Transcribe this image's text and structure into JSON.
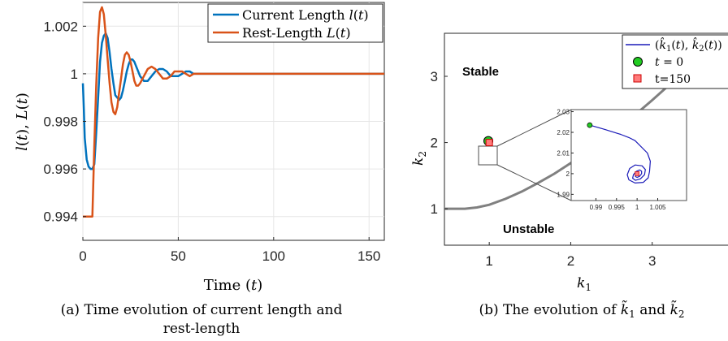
{
  "colors": {
    "current": "#0072BD",
    "rest": "#D95319",
    "path": "#1a1ab8",
    "boundary": "#808080",
    "start": "#22cc22",
    "end": "#ff7b7b"
  },
  "chart_data": [
    {
      "type": "line",
      "xlabel": "Time (t)",
      "ylabel": "l(t), L(t)",
      "xlim": [
        0,
        158
      ],
      "ylim": [
        0.993,
        1.003
      ],
      "xticks": [
        0,
        50,
        100,
        150
      ],
      "yticks": [
        0.994,
        0.996,
        0.998,
        1,
        1.002
      ],
      "ytick_labels": [
        "0.994",
        "0.996",
        "0.998",
        "1",
        "1.002"
      ],
      "grid": true,
      "legend_position": "top-right",
      "caption": "(a) Time evolution of current length and rest-length",
      "series": [
        {
          "name": "Current Length l(t)",
          "color": "current",
          "x": [
            0,
            0.5,
            1,
            2,
            3,
            4,
            5,
            6,
            7,
            8,
            9,
            10,
            11,
            12,
            13,
            14,
            15,
            16,
            17,
            18,
            19,
            20,
            21,
            22,
            23,
            24,
            25,
            26,
            27,
            28,
            29,
            30,
            32,
            34,
            36,
            38,
            40,
            42,
            44,
            46,
            48,
            50,
            52,
            54,
            56,
            58,
            60,
            62,
            64,
            66,
            70,
            80,
            90,
            100,
            120,
            158
          ],
          "y": [
            0.9996,
            0.9985,
            0.9973,
            0.9964,
            0.9961,
            0.996,
            0.996,
            0.9962,
            0.9975,
            0.999,
            1.0005,
            1.0013,
            1.0016,
            1.0017,
            1.0015,
            1.0009,
            1.0002,
            0.9996,
            0.9991,
            0.999,
            0.9989,
            0.999,
            0.9993,
            0.9997,
            1.0001,
            1.0004,
            1.0006,
            1.0006,
            1.0005,
            1.0003,
            1.0001,
            0.9999,
            0.9997,
            0.9997,
            0.9999,
            1.0001,
            1.0002,
            1.0002,
            1.0001,
            0.9999,
            0.9999,
            0.9999,
            1.0,
            1.0001,
            1.0001,
            1.0,
            1.0,
            1.0,
            1.0,
            1.0,
            1.0,
            1.0,
            1.0,
            1.0,
            1.0,
            1.0
          ]
        },
        {
          "name": "Rest-Length L(t)",
          "color": "rest",
          "x": [
            0,
            5,
            5.5,
            6,
            7,
            8,
            9,
            10,
            11,
            12,
            13,
            14,
            15,
            16,
            17,
            18,
            19,
            20,
            21,
            22,
            23,
            24,
            25,
            26,
            27,
            28,
            29,
            30,
            32,
            34,
            36,
            38,
            40,
            42,
            44,
            46,
            48,
            50,
            52,
            54,
            56,
            58,
            60,
            62,
            64,
            66,
            70,
            80,
            90,
            100,
            120,
            158
          ],
          "y": [
            0.994,
            0.994,
            0.9955,
            0.997,
            0.9995,
            1.0015,
            1.0026,
            1.0028,
            1.0025,
            1.0016,
            1.0006,
            0.9996,
            0.9988,
            0.9984,
            0.9983,
            0.9986,
            0.9992,
            0.9998,
            1.0004,
            1.0008,
            1.0009,
            1.0008,
            1.0005,
            1.0001,
            0.9997,
            0.9995,
            0.9995,
            0.9996,
            0.9999,
            1.0002,
            1.0003,
            1.0002,
            1.0,
            0.9998,
            0.9998,
            0.9999,
            1.0001,
            1.0001,
            1.0001,
            1.0,
            0.9999,
            1.0,
            1.0,
            1.0,
            1.0,
            1.0,
            1.0,
            1.0,
            1.0,
            1.0,
            1.0,
            1.0
          ]
        }
      ]
    },
    {
      "type": "line",
      "xlabel": "k1",
      "ylabel": "k2",
      "xlim": [
        0.45,
        4
      ],
      "ylim": [
        0.45,
        3.65
      ],
      "xticks": [
        1,
        2,
        3
      ],
      "yticks": [
        1,
        2,
        3
      ],
      "grid": false,
      "legend_position": "top-right",
      "caption": "(b) The evolution of k1 and k2",
      "region_labels": {
        "stable": "Stable",
        "unstable": "Unstable"
      },
      "boundary": {
        "x": [
          0.45,
          0.7,
          0.85,
          1.0,
          1.2,
          1.4,
          1.6,
          1.8,
          2.0,
          2.2,
          2.4,
          2.6,
          2.8,
          3.0,
          3.2,
          3.4,
          3.5,
          3.6,
          3.7
        ],
        "y": [
          1.0,
          1.0,
          1.02,
          1.06,
          1.15,
          1.26,
          1.39,
          1.53,
          1.69,
          1.86,
          2.04,
          2.23,
          2.43,
          2.64,
          2.86,
          3.09,
          3.21,
          3.33,
          3.45
        ]
      },
      "series": [
        {
          "name": "(k̂1(t), k̂2(t))",
          "color": "path"
        },
        {
          "name": "t = 0",
          "color": "start",
          "marker": "circle"
        },
        {
          "name": "t=150",
          "color": "end",
          "marker": "square"
        }
      ],
      "inset": {
        "xlim": [
          0.984,
          1.012
        ],
        "ylim": [
          1.987,
          2.031
        ],
        "xticks": [
          0.99,
          0.995,
          1,
          1.005
        ],
        "xtick_labels": [
          "0.99",
          "0.995",
          "1",
          "1.005"
        ],
        "yticks": [
          1.99,
          2,
          2.01,
          2.02,
          2.03
        ],
        "ytick_labels": [
          "1.99",
          "2",
          "2.01",
          "2.02",
          "2.03"
        ],
        "path": {
          "x": [
            0.9885,
            0.992,
            0.996,
            0.998,
            0.9995,
            1.0025,
            1.0032,
            1.003,
            1.0027,
            1.0015,
            0.9995,
            0.998,
            0.9976,
            0.9982,
            0.9995,
            1.0012,
            1.002,
            1.0018,
            1.0008,
            0.9996,
            0.9989,
            0.9991,
            0.9998,
            1.0006,
            1.0011,
            1.0011,
            1.0006,
            1.0,
            0.9996,
            0.9996,
            1.0,
            1.0003,
            1.0004,
            1.0002,
            1.0
          ],
          "y": [
            2.0235,
            2.0215,
            2.019,
            2.0175,
            2.016,
            2.01,
            2.006,
            2.001,
            1.998,
            1.9958,
            1.9955,
            1.997,
            1.9995,
            2.0025,
            2.0042,
            2.0038,
            2.002,
            1.9995,
            1.9975,
            1.9968,
            1.9978,
            1.9995,
            2.0011,
            2.0018,
            2.0012,
            2.0,
            1.9987,
            1.9982,
            1.9986,
            1.9996,
            2.0005,
            2.0007,
            2.0003,
            1.9997,
            2.0
          ]
        },
        "start": {
          "x": 0.9885,
          "y": 2.0235
        },
        "end": {
          "x": 1.0,
          "y": 2.0
        }
      },
      "start": {
        "x": 0.9885,
        "y": 2.0235
      },
      "end": {
        "x": 1.0,
        "y": 2.0
      }
    }
  ]
}
